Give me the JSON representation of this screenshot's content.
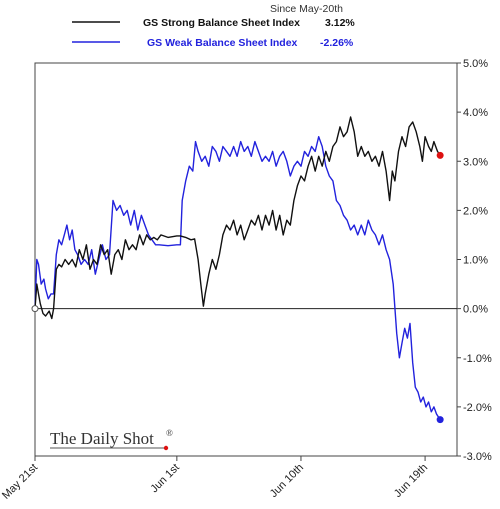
{
  "chart_data": {
    "type": "line",
    "subtitle": "Since May-20th",
    "legend_placement": "top-center",
    "grid": false,
    "ylim": [
      -3.0,
      5.0
    ],
    "yticks": [
      "5.0%",
      "4.0%",
      "3.0%",
      "2.0%",
      "1.0%",
      "0.0%",
      "-1.0%",
      "-2.0%",
      "-3.0%"
    ],
    "xtick_labels": [
      "May 21st",
      "Jun 1st",
      "Jun 10th",
      "Jun 19th"
    ],
    "xtick_positions": [
      0,
      8,
      15,
      22
    ],
    "x_range": [
      0,
      23.8
    ],
    "series": [
      {
        "name": "GS Strong Balance Sheet Index",
        "last_label": "3.12%",
        "color": "#111111",
        "end_marker_color": "#dd1111",
        "values": [
          [
            0,
            0
          ],
          [
            0.1,
            0.5
          ],
          [
            0.2,
            0.3
          ],
          [
            0.3,
            0.1
          ],
          [
            0.45,
            -0.1
          ],
          [
            0.6,
            -0.15
          ],
          [
            0.8,
            -0.05
          ],
          [
            0.95,
            -0.2
          ],
          [
            1.05,
            0.0
          ],
          [
            1.2,
            0.8
          ],
          [
            1.35,
            0.9
          ],
          [
            1.5,
            0.85
          ],
          [
            1.7,
            1.0
          ],
          [
            1.9,
            0.9
          ],
          [
            2.1,
            1.0
          ],
          [
            2.3,
            0.85
          ],
          [
            2.5,
            1.2
          ],
          [
            2.7,
            1.0
          ],
          [
            2.9,
            1.3
          ],
          [
            3.1,
            0.8
          ],
          [
            3.3,
            1.0
          ],
          [
            3.5,
            0.9
          ],
          [
            3.7,
            1.3
          ],
          [
            3.9,
            1.1
          ],
          [
            4.1,
            1.2
          ],
          [
            4.3,
            0.7
          ],
          [
            4.5,
            1.1
          ],
          [
            4.7,
            1.2
          ],
          [
            4.9,
            1.0
          ],
          [
            5.1,
            1.4
          ],
          [
            5.3,
            1.2
          ],
          [
            5.5,
            1.3
          ],
          [
            5.7,
            1.2
          ],
          [
            5.9,
            1.5
          ],
          [
            6.1,
            1.3
          ],
          [
            6.3,
            1.5
          ],
          [
            6.5,
            1.4
          ],
          [
            6.7,
            1.45
          ],
          [
            6.9,
            1.4
          ],
          [
            7.1,
            1.5
          ],
          [
            7.5,
            1.45
          ],
          [
            8.0,
            1.48
          ],
          [
            8.2,
            1.48
          ],
          [
            8.5,
            1.45
          ],
          [
            8.8,
            1.4
          ],
          [
            9.0,
            1.42
          ],
          [
            9.2,
            1.0
          ],
          [
            9.35,
            0.5
          ],
          [
            9.5,
            0.05
          ],
          [
            9.6,
            0.3
          ],
          [
            9.8,
            0.7
          ],
          [
            10.0,
            1.0
          ],
          [
            10.2,
            0.8
          ],
          [
            10.4,
            1.1
          ],
          [
            10.6,
            1.5
          ],
          [
            10.8,
            1.7
          ],
          [
            11.0,
            1.6
          ],
          [
            11.2,
            1.8
          ],
          [
            11.4,
            1.5
          ],
          [
            11.6,
            1.7
          ],
          [
            11.8,
            1.4
          ],
          [
            12.0,
            1.6
          ],
          [
            12.2,
            1.8
          ],
          [
            12.4,
            1.7
          ],
          [
            12.6,
            1.9
          ],
          [
            12.8,
            1.6
          ],
          [
            13.0,
            1.9
          ],
          [
            13.2,
            1.7
          ],
          [
            13.4,
            2.0
          ],
          [
            13.6,
            1.6
          ],
          [
            13.8,
            1.9
          ],
          [
            14.0,
            1.5
          ],
          [
            14.2,
            1.8
          ],
          [
            14.4,
            1.7
          ],
          [
            14.6,
            2.2
          ],
          [
            14.8,
            2.5
          ],
          [
            15.0,
            2.7
          ],
          [
            15.2,
            2.6
          ],
          [
            15.4,
            2.9
          ],
          [
            15.6,
            3.1
          ],
          [
            15.8,
            2.8
          ],
          [
            16.0,
            3.1
          ],
          [
            16.2,
            2.9
          ],
          [
            16.4,
            3.2
          ],
          [
            16.6,
            3.0
          ],
          [
            16.8,
            3.3
          ],
          [
            17.0,
            3.4
          ],
          [
            17.2,
            3.7
          ],
          [
            17.4,
            3.5
          ],
          [
            17.6,
            3.6
          ],
          [
            17.8,
            3.9
          ],
          [
            18.0,
            3.6
          ],
          [
            18.2,
            3.1
          ],
          [
            18.4,
            3.3
          ],
          [
            18.6,
            3.1
          ],
          [
            18.8,
            3.2
          ],
          [
            19.0,
            3.0
          ],
          [
            19.2,
            3.1
          ],
          [
            19.4,
            2.9
          ],
          [
            19.6,
            3.2
          ],
          [
            19.8,
            2.8
          ],
          [
            20.0,
            2.2
          ],
          [
            20.15,
            2.8
          ],
          [
            20.3,
            2.6
          ],
          [
            20.5,
            3.2
          ],
          [
            20.7,
            3.5
          ],
          [
            20.9,
            3.3
          ],
          [
            21.1,
            3.7
          ],
          [
            21.3,
            3.8
          ],
          [
            21.5,
            3.6
          ],
          [
            21.7,
            3.3
          ],
          [
            21.85,
            3.0
          ],
          [
            22.0,
            3.5
          ],
          [
            22.2,
            3.3
          ],
          [
            22.35,
            3.2
          ],
          [
            22.5,
            3.4
          ],
          [
            22.7,
            3.2
          ],
          [
            22.85,
            3.12
          ]
        ]
      },
      {
        "name": "GS Weak Balance Sheet Index",
        "last_label": "-2.26%",
        "color": "#2222dd",
        "end_marker_color": "#2222dd",
        "values": [
          [
            0,
            0
          ],
          [
            0.1,
            1.0
          ],
          [
            0.2,
            0.9
          ],
          [
            0.35,
            0.5
          ],
          [
            0.5,
            0.6
          ],
          [
            0.6,
            0.4
          ],
          [
            0.75,
            0.2
          ],
          [
            0.9,
            0.3
          ],
          [
            1.05,
            0.3
          ],
          [
            1.2,
            1.1
          ],
          [
            1.35,
            1.4
          ],
          [
            1.5,
            1.3
          ],
          [
            1.65,
            1.5
          ],
          [
            1.8,
            1.7
          ],
          [
            1.95,
            1.4
          ],
          [
            2.1,
            1.6
          ],
          [
            2.25,
            1.2
          ],
          [
            2.4,
            1.1
          ],
          [
            2.6,
            0.9
          ],
          [
            2.8,
            1.0
          ],
          [
            3.0,
            0.9
          ],
          [
            3.2,
            1.2
          ],
          [
            3.4,
            0.7
          ],
          [
            3.6,
            1.0
          ],
          [
            3.8,
            1.3
          ],
          [
            4.0,
            1.0
          ],
          [
            4.2,
            1.1
          ],
          [
            4.4,
            2.2
          ],
          [
            4.6,
            2.0
          ],
          [
            4.8,
            2.1
          ],
          [
            5.0,
            1.9
          ],
          [
            5.2,
            2.0
          ],
          [
            5.4,
            1.7
          ],
          [
            5.6,
            2.0
          ],
          [
            5.8,
            1.6
          ],
          [
            6.0,
            1.9
          ],
          [
            6.2,
            1.7
          ],
          [
            6.4,
            1.5
          ],
          [
            6.6,
            1.4
          ],
          [
            6.8,
            1.3
          ],
          [
            7.0,
            1.3
          ],
          [
            7.5,
            1.28
          ],
          [
            8.0,
            1.3
          ],
          [
            8.2,
            1.3
          ],
          [
            8.3,
            2.2
          ],
          [
            8.5,
            2.6
          ],
          [
            8.7,
            2.9
          ],
          [
            8.9,
            2.8
          ],
          [
            9.05,
            3.4
          ],
          [
            9.2,
            3.2
          ],
          [
            9.4,
            3.0
          ],
          [
            9.6,
            3.1
          ],
          [
            9.8,
            2.9
          ],
          [
            10.0,
            3.3
          ],
          [
            10.2,
            3.2
          ],
          [
            10.4,
            3.0
          ],
          [
            10.6,
            3.3
          ],
          [
            10.8,
            3.2
          ],
          [
            11.0,
            3.1
          ],
          [
            11.2,
            3.3
          ],
          [
            11.4,
            3.1
          ],
          [
            11.6,
            3.4
          ],
          [
            11.8,
            3.2
          ],
          [
            12.0,
            3.3
          ],
          [
            12.2,
            3.1
          ],
          [
            12.4,
            3.4
          ],
          [
            12.6,
            3.2
          ],
          [
            12.8,
            3.0
          ],
          [
            13.0,
            3.1
          ],
          [
            13.2,
            3.0
          ],
          [
            13.4,
            3.2
          ],
          [
            13.6,
            2.9
          ],
          [
            13.8,
            3.1
          ],
          [
            14.0,
            3.2
          ],
          [
            14.2,
            3.0
          ],
          [
            14.4,
            2.7
          ],
          [
            14.6,
            2.9
          ],
          [
            14.8,
            3.0
          ],
          [
            15.0,
            2.9
          ],
          [
            15.2,
            3.2
          ],
          [
            15.4,
            3.1
          ],
          [
            15.6,
            3.3
          ],
          [
            15.8,
            3.2
          ],
          [
            16.0,
            3.5
          ],
          [
            16.2,
            3.3
          ],
          [
            16.4,
            2.9
          ],
          [
            16.6,
            2.7
          ],
          [
            16.8,
            2.6
          ],
          [
            17.0,
            2.2
          ],
          [
            17.2,
            2.1
          ],
          [
            17.4,
            1.9
          ],
          [
            17.6,
            1.8
          ],
          [
            17.8,
            1.6
          ],
          [
            18.0,
            1.7
          ],
          [
            18.2,
            1.5
          ],
          [
            18.4,
            1.7
          ],
          [
            18.6,
            1.5
          ],
          [
            18.8,
            1.8
          ],
          [
            19.0,
            1.6
          ],
          [
            19.2,
            1.5
          ],
          [
            19.4,
            1.3
          ],
          [
            19.6,
            1.5
          ],
          [
            19.8,
            1.2
          ],
          [
            20.0,
            1.0
          ],
          [
            20.2,
            0.5
          ],
          [
            20.4,
            -0.5
          ],
          [
            20.55,
            -1.0
          ],
          [
            20.7,
            -0.7
          ],
          [
            20.85,
            -0.4
          ],
          [
            21.0,
            -0.6
          ],
          [
            21.15,
            -0.3
          ],
          [
            21.3,
            -1.1
          ],
          [
            21.45,
            -1.6
          ],
          [
            21.6,
            -1.7
          ],
          [
            21.75,
            -1.9
          ],
          [
            21.9,
            -1.8
          ],
          [
            22.05,
            -2.0
          ],
          [
            22.2,
            -1.9
          ],
          [
            22.35,
            -2.1
          ],
          [
            22.5,
            -2.0
          ],
          [
            22.65,
            -2.15
          ],
          [
            22.85,
            -2.26
          ]
        ]
      }
    ]
  },
  "watermark": {
    "text": "The Daily Shot",
    "mark": "®",
    "dot_color": "#dd1111"
  }
}
